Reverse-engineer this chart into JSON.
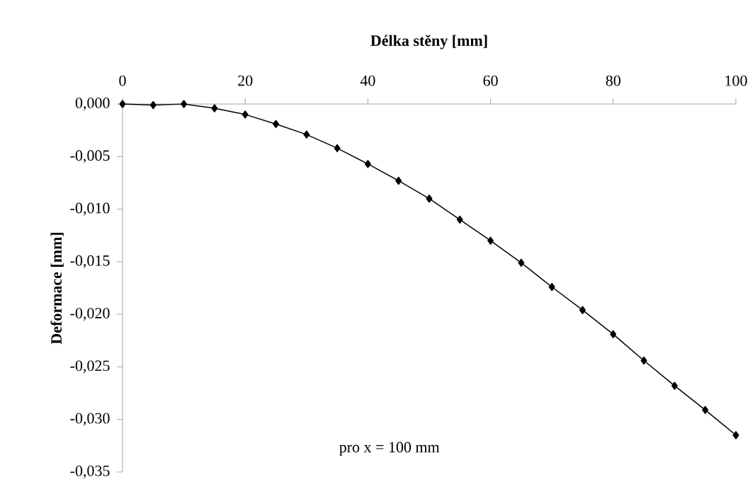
{
  "chart_data": {
    "type": "line",
    "xlabel": "Délka stěny [mm]",
    "ylabel": "Deformace [mm]",
    "annotations": [
      "pro x = 100 mm"
    ],
    "x": [
      0,
      5,
      10,
      15,
      20,
      25,
      30,
      35,
      40,
      45,
      50,
      55,
      60,
      65,
      70,
      75,
      80,
      85,
      90,
      95,
      100
    ],
    "series": [
      {
        "color": "#000000",
        "values": [
          0.0,
          -0.0001,
          0.0,
          -0.0004,
          -0.001,
          -0.0019,
          -0.0029,
          -0.0042,
          -0.0057,
          -0.0073,
          -0.009,
          -0.011,
          -0.013,
          -0.0151,
          -0.0174,
          -0.0196,
          -0.0219,
          -0.0244,
          -0.0268,
          -0.0291,
          -0.0315
        ]
      }
    ],
    "xlim": [
      0,
      100
    ],
    "xticks": [
      0,
      20,
      40,
      60,
      80,
      100
    ],
    "ylim": [
      -0.035,
      0
    ],
    "yticks": [
      {
        "value": 0,
        "label": "0,000"
      },
      {
        "value": -0.005,
        "label": "-0,005"
      },
      {
        "value": -0.01,
        "label": "-0,010"
      },
      {
        "value": -0.015,
        "label": "-0,015"
      },
      {
        "value": -0.02,
        "label": "-0,020"
      },
      {
        "value": -0.025,
        "label": "-0,025"
      },
      {
        "value": -0.03,
        "label": "-0,030"
      },
      {
        "value": -0.035,
        "label": "-0,035"
      }
    ],
    "marker": "diamond",
    "line_style": "solid"
  }
}
